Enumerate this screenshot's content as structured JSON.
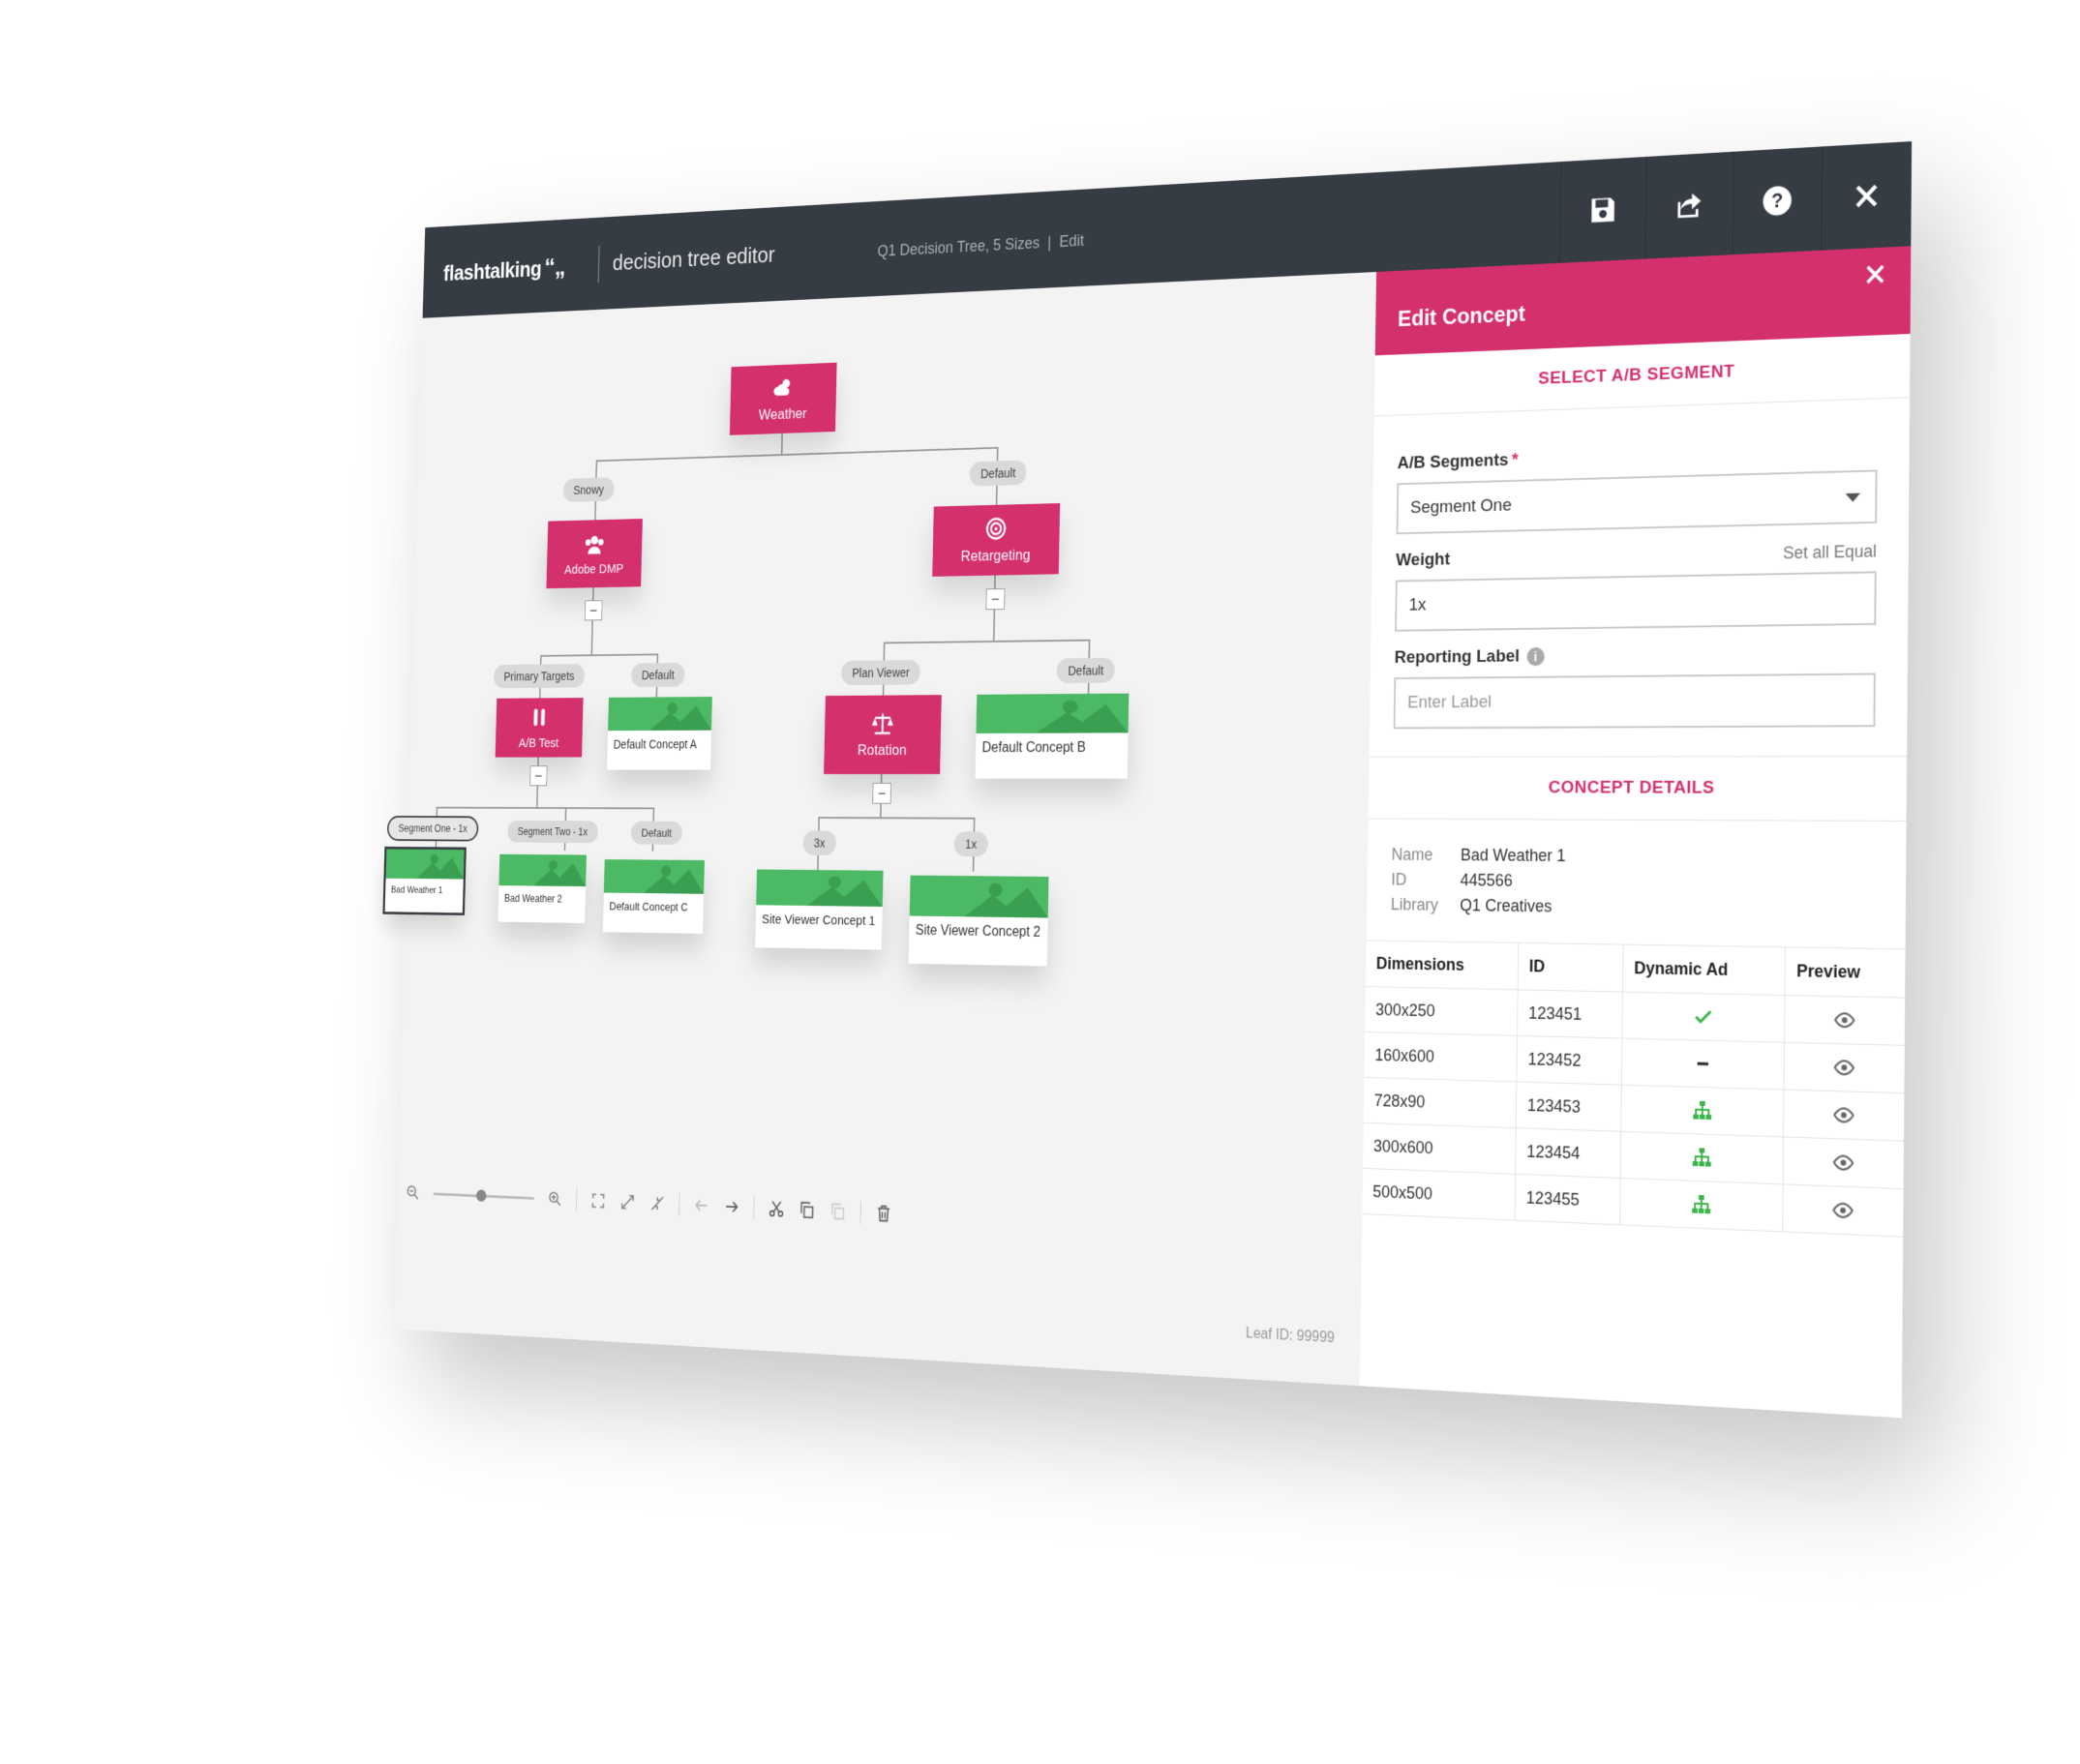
{
  "header": {
    "brand": "flashtalking",
    "app_name": "decision tree editor",
    "doc_title": "Q1 Decision Tree, 5 Sizes",
    "doc_mode": "Edit",
    "toolbar": [
      {
        "name": "save-icon"
      },
      {
        "name": "share-icon"
      },
      {
        "name": "help-icon"
      },
      {
        "name": "close-icon"
      }
    ]
  },
  "tree": {
    "root": {
      "label": "Weather",
      "icon": "weather-icon"
    },
    "edge_labels": {
      "snowy": "Snowy",
      "default_root": "Default",
      "primary_targets": "Primary Targets",
      "default_dmp": "Default",
      "plan_viewer": "Plan Viewer",
      "default_retarget": "Default",
      "segment_one": "Segment One - 1x",
      "segment_two": "Segment Two - 1x",
      "default_ab": "Default",
      "three_x": "3x",
      "one_x": "1x"
    },
    "nodes": {
      "adobe_dmp": {
        "label": "Adobe DMP",
        "icon": "users-icon"
      },
      "retargeting": {
        "label": "Retargeting",
        "icon": "target-icon"
      },
      "ab_test": {
        "label": "A/B Test",
        "icon": "test-tubes-icon"
      },
      "rotation": {
        "label": "Rotation",
        "icon": "scale-icon"
      }
    },
    "leaves": {
      "default_a": "Default Concept A",
      "default_b": "Default Concept B",
      "bad_weather_1": "Bad Weather 1",
      "bad_weather_2": "Bad Weather 2",
      "default_c": "Default Concept C",
      "site_viewer_1": "Site Viewer Concept 1",
      "site_viewer_2": "Site Viewer Concept 2"
    },
    "leaf_id": "Leaf ID: 99999"
  },
  "panel": {
    "title": "Edit Concept",
    "section_segment": "SELECT A/B SEGMENT",
    "ab_segments_label": "A/B Segments",
    "ab_segments_required": "*",
    "ab_segments_value": "Segment One",
    "set_all_equal": "Set all Equal",
    "weight_label": "Weight",
    "weight_value": "1x",
    "reporting_label": "Reporting Label",
    "reporting_placeholder": "Enter Label",
    "section_details": "CONCEPT DETAILS",
    "details": {
      "name_key": "Name",
      "name_val": "Bad Weather 1",
      "id_key": "ID",
      "id_val": "445566",
      "library_key": "Library",
      "library_val": "Q1 Creatives"
    },
    "table": {
      "headers": [
        "Dimensions",
        "ID",
        "Dynamic Ad",
        "Preview"
      ],
      "rows": [
        {
          "dim": "300x250",
          "id": "123451",
          "dynamic": "check-icon"
        },
        {
          "dim": "160x600",
          "id": "123452",
          "dynamic": "dash-icon"
        },
        {
          "dim": "728x90",
          "id": "123453",
          "dynamic": "hierarchy-icon"
        },
        {
          "dim": "300x600",
          "id": "123454",
          "dynamic": "hierarchy-icon"
        },
        {
          "dim": "500x500",
          "id": "123455",
          "dynamic": "hierarchy-icon"
        }
      ]
    }
  },
  "colors": {
    "accent": "#d4306e",
    "topbar": "#363c44",
    "leaf_green": "#4cb964",
    "check_green": "#3bb54a"
  }
}
